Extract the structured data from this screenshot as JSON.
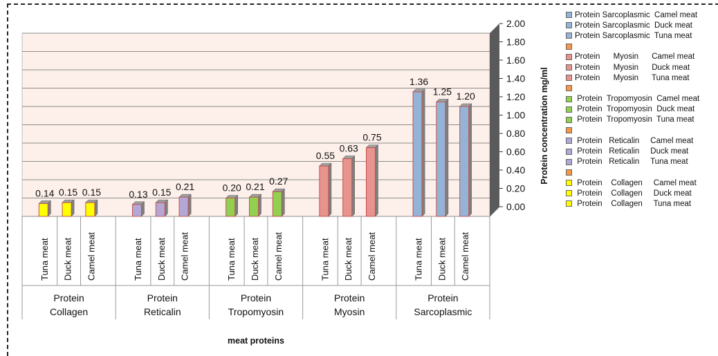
{
  "chart_data": {
    "type": "bar",
    "title": "",
    "xlabel": "meat proteins",
    "ylabel": "Protein concentration mg/ml",
    "ylim": [
      0,
      2
    ],
    "yticks": [
      "0.00",
      "0.20",
      "0.40",
      "0.60",
      "0.80",
      "1.00",
      "1.20",
      "1.40",
      "1.60",
      "1.80",
      "2.00"
    ],
    "grid": true,
    "legend_position": "right",
    "groups": [
      {
        "name_line1": "Protein",
        "name_line2": "Collagen",
        "color": "#ffff00",
        "bars": [
          {
            "label": "Tuna meat",
            "value": 0.14,
            "value_label": "0.14"
          },
          {
            "label": "Duck meat",
            "value": 0.15,
            "value_label": "0.15"
          },
          {
            "label": "Camel meat",
            "value": 0.15,
            "value_label": "0.15"
          }
        ]
      },
      {
        "name_line1": "Protein",
        "name_line2": "Reticalin",
        "color": "#b4a7d6",
        "bars": [
          {
            "label": "Tuna meat",
            "value": 0.13,
            "value_label": "0.13"
          },
          {
            "label": "Duck meat",
            "value": 0.15,
            "value_label": "0.15"
          },
          {
            "label": "Camel meat",
            "value": 0.21,
            "value_label": "0.21"
          }
        ]
      },
      {
        "name_line1": "Protein",
        "name_line2": "Tropomyosin",
        "color": "#92d050",
        "bars": [
          {
            "label": "Tuna meat",
            "value": 0.2,
            "value_label": "0.20"
          },
          {
            "label": "Duck meat",
            "value": 0.21,
            "value_label": "0.21"
          },
          {
            "label": "Camel meat",
            "value": 0.27,
            "value_label": "0.27"
          }
        ]
      },
      {
        "name_line1": "Protein",
        "name_line2": "Myosin",
        "color": "#e6948d",
        "bars": [
          {
            "label": "Tuna meat",
            "value": 0.55,
            "value_label": "0.55"
          },
          {
            "label": "Duck meat",
            "value": 0.63,
            "value_label": "0.63"
          },
          {
            "label": "Camel meat",
            "value": 0.75,
            "value_label": "0.75"
          }
        ]
      },
      {
        "name_line1": "Protein",
        "name_line2": "Sarcoplasmic",
        "color": "#95b3d7",
        "bars": [
          {
            "label": "Tuna meat",
            "value": 1.36,
            "value_label": "1.36"
          },
          {
            "label": "Duck meat",
            "value": 1.25,
            "value_label": "1.25"
          },
          {
            "label": "Camel meat",
            "value": 1.2,
            "value_label": "1.20"
          }
        ]
      }
    ],
    "legend": [
      {
        "text": "Protein Sarcoplasmic  Camel meat",
        "color": "#95b3d7"
      },
      {
        "text": "Protein Sarcoplasmic  Duck meat",
        "color": "#95b3d7"
      },
      {
        "text": "Protein Sarcoplasmic  Tuna meat",
        "color": "#95b3d7"
      },
      {
        "text": "",
        "color": "#f79646"
      },
      {
        "text": "Protein      Myosin      Camel meat",
        "color": "#e6948d"
      },
      {
        "text": "Protein      Myosin      Duck meat",
        "color": "#e6948d"
      },
      {
        "text": "Protein      Myosin      Tuna meat",
        "color": "#e6948d"
      },
      {
        "text": "",
        "color": "#f79646"
      },
      {
        "text": " Protein  Tropomyosin  Camel meat",
        "color": "#92d050"
      },
      {
        "text": " Protein  Tropomyosin  Duck meat",
        "color": "#92d050"
      },
      {
        "text": " Protein  Tropomyosin  Tuna meat",
        "color": "#92d050"
      },
      {
        "text": "",
        "color": "#f79646"
      },
      {
        "text": " Protein   Reticalin     Camel meat",
        "color": "#b4a7d6"
      },
      {
        "text": " Protein   Reticalin     Duck meat",
        "color": "#b4a7d6"
      },
      {
        "text": " Protein   Reticalin     Tuna meat",
        "color": "#b4a7d6"
      },
      {
        "text": "",
        "color": "#f79646"
      },
      {
        "text": " Protein    Collagen     Camel meat",
        "color": "#ffff00"
      },
      {
        "text": " Protein    Collagen     Duck meat",
        "color": "#ffff00"
      },
      {
        "text": " Protein    Collagen     Tuna meat",
        "color": "#ffff00"
      }
    ],
    "colors": {
      "plot_background": "#fdf0ea",
      "gridline": "#8c8c8c",
      "wall": "#5a5a5a",
      "bar_edge": "#c0504d"
    }
  }
}
